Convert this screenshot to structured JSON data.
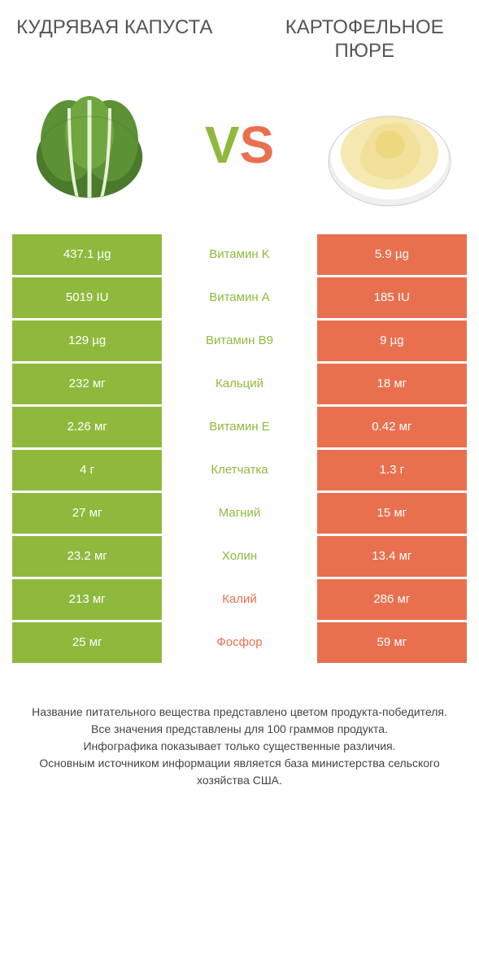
{
  "titles": {
    "left": "Кудрявая капуста",
    "right": "Картофельное пюре"
  },
  "vs": {
    "v": "V",
    "s": "S"
  },
  "colors": {
    "left_bg": "#8fb93d",
    "right_bg": "#e9704f",
    "mid_green": "#8fb93d",
    "mid_orange": "#e9704f"
  },
  "rows": [
    {
      "left": "437.1 µg",
      "label": "Витамин K",
      "right": "5.9 µg",
      "winner": "green"
    },
    {
      "left": "5019 IU",
      "label": "Витамин A",
      "right": "185 IU",
      "winner": "green"
    },
    {
      "left": "129 µg",
      "label": "Витамин B9",
      "right": "9 µg",
      "winner": "green"
    },
    {
      "left": "232 мг",
      "label": "Кальций",
      "right": "18 мг",
      "winner": "green"
    },
    {
      "left": "2.26 мг",
      "label": "Витамин E",
      "right": "0.42 мг",
      "winner": "green"
    },
    {
      "left": "4 г",
      "label": "Клетчатка",
      "right": "1.3 г",
      "winner": "green"
    },
    {
      "left": "27 мг",
      "label": "Магний",
      "right": "15 мг",
      "winner": "green"
    },
    {
      "left": "23.2 мг",
      "label": "Холин",
      "right": "13.4 мг",
      "winner": "green"
    },
    {
      "left": "213 мг",
      "label": "Калий",
      "right": "286 мг",
      "winner": "orange"
    },
    {
      "left": "25 мг",
      "label": "Фосфор",
      "right": "59 мг",
      "winner": "orange"
    }
  ],
  "footer": {
    "l1": "Название питательного вещества представлено цветом продукта-победителя.",
    "l2": "Все значения представлены для 100 граммов продукта.",
    "l3": "Инфографика показывает только существенные различия.",
    "l4": "Основным источником информации является база министерства сельского хозяйства США."
  }
}
